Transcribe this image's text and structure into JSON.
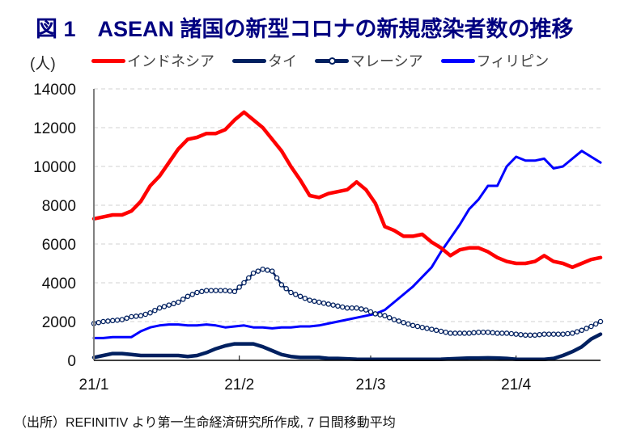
{
  "title": "図 1　ASEAN 諸国の新型コロナの新規感染者数の推移",
  "unit_label": "(人)",
  "source": "（出所）REFINITIV より第一生命経済研究所作成, 7 日間移動平均",
  "chart_data": {
    "type": "line",
    "title": "図 1　ASEAN 諸国の新型コロナの新規感染者数の推移",
    "xlabel": "",
    "ylabel": "(人)",
    "ylim": [
      0,
      14000
    ],
    "yticks": [
      "0",
      "2000",
      "4000",
      "6000",
      "8000",
      "10000",
      "12000",
      "14000"
    ],
    "ytick_values": [
      0,
      2000,
      4000,
      6000,
      8000,
      10000,
      12000,
      14000
    ],
    "xlim_days": [
      0,
      108
    ],
    "xticks": [
      {
        "label": "21/1",
        "day": 0
      },
      {
        "label": "21/2",
        "day": 31
      },
      {
        "label": "21/3",
        "day": 59
      },
      {
        "label": "21/4",
        "day": 90
      }
    ],
    "grid": true,
    "legend_position": "top",
    "x_days": [
      0,
      2,
      4,
      6,
      8,
      10,
      12,
      14,
      16,
      18,
      20,
      22,
      24,
      26,
      28,
      30,
      32,
      34,
      36,
      38,
      40,
      42,
      44,
      46,
      48,
      50,
      52,
      54,
      56,
      58,
      60,
      62,
      64,
      66,
      68,
      70,
      72,
      74,
      76,
      78,
      80,
      82,
      84,
      86,
      88,
      90,
      92,
      94,
      96,
      98,
      100,
      102,
      104,
      106,
      108
    ],
    "series": [
      {
        "name": "インドネシア",
        "color": "#FF0000",
        "marker": "none",
        "values": [
          7300,
          7400,
          7500,
          7500,
          7700,
          8200,
          9000,
          9500,
          10200,
          10900,
          11400,
          11500,
          11700,
          11700,
          11900,
          12400,
          12800,
          12400,
          12000,
          11400,
          10800,
          10000,
          9300,
          8500,
          8400,
          8600,
          8700,
          8800,
          9200,
          8800,
          8100,
          6900,
          6700,
          6400,
          6400,
          6500,
          6100,
          5800,
          5400,
          5700,
          5800,
          5800,
          5600,
          5300,
          5100,
          5000,
          5000,
          5100,
          5400,
          5100,
          5000,
          4800,
          5000,
          5200,
          5300
        ]
      },
      {
        "name": "タイ",
        "color": "#002060",
        "marker": "none",
        "values": [
          150,
          250,
          350,
          350,
          300,
          250,
          250,
          250,
          250,
          250,
          200,
          250,
          400,
          600,
          750,
          850,
          850,
          850,
          700,
          500,
          300,
          200,
          150,
          150,
          150,
          100,
          100,
          80,
          60,
          50,
          50,
          50,
          50,
          50,
          50,
          50,
          50,
          60,
          80,
          100,
          120,
          120,
          130,
          120,
          100,
          60,
          50,
          50,
          50,
          100,
          250,
          450,
          700,
          1100,
          1350
        ]
      },
      {
        "name": "マレーシア",
        "color": "#002060",
        "marker": "circle",
        "values": [
          1900,
          2000,
          2050,
          2100,
          2250,
          2300,
          2450,
          2700,
          2850,
          3000,
          3300,
          3500,
          3600,
          3600,
          3600,
          3550,
          4000,
          4500,
          4700,
          4600,
          3900,
          3500,
          3300,
          3100,
          3000,
          2900,
          2800,
          2700,
          2700,
          2600,
          2400,
          2300,
          2100,
          1950,
          1800,
          1700,
          1600,
          1500,
          1400,
          1400,
          1400,
          1450,
          1450,
          1400,
          1400,
          1350,
          1300,
          1300,
          1350,
          1350,
          1350,
          1400,
          1550,
          1750,
          2000
        ]
      },
      {
        "name": "フィリピン",
        "color": "#0000FF",
        "marker": "none",
        "values": [
          1150,
          1150,
          1200,
          1200,
          1200,
          1500,
          1700,
          1800,
          1850,
          1850,
          1800,
          1800,
          1850,
          1800,
          1700,
          1750,
          1800,
          1700,
          1700,
          1650,
          1700,
          1700,
          1750,
          1750,
          1800,
          1900,
          2000,
          2100,
          2200,
          2300,
          2400,
          2600,
          3000,
          3400,
          3800,
          4300,
          4800,
          5600,
          6300,
          7000,
          7800,
          8300,
          9000,
          9000,
          10000,
          10500,
          10300,
          10300,
          10400,
          9900,
          10000,
          10400,
          10800,
          10500,
          10200
        ]
      }
    ]
  }
}
